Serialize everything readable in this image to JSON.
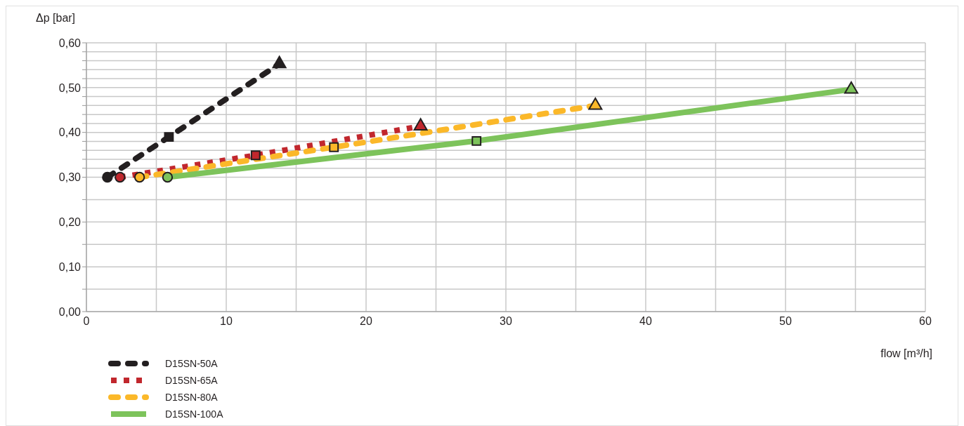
{
  "chart_data": {
    "type": "line",
    "xlabel": "flow [m³/h]",
    "ylabel": "Δp [bar]",
    "xlim": [
      0,
      60
    ],
    "xticks": [
      0,
      {
        "value": 5,
        "label": null
      },
      10,
      {
        "value": 15,
        "label": null
      },
      20,
      {
        "value": 25,
        "label": null
      },
      30,
      {
        "value": 35,
        "label": null
      },
      40,
      {
        "value": 45,
        "label": null
      },
      50,
      {
        "value": 55,
        "label": null
      },
      60
    ],
    "ylim": [
      0,
      0.6
    ],
    "yticks": [
      {
        "value": 0,
        "label": "0,00"
      },
      {
        "value": 0.05,
        "label": null
      },
      {
        "value": 0.1,
        "label": "0,10"
      },
      {
        "value": 0.15,
        "label": null
      },
      {
        "value": 0.2,
        "label": "0,20"
      },
      {
        "value": 0.25,
        "label": null
      },
      {
        "value": 0.3,
        "label": "0,30"
      },
      {
        "value": 0.32,
        "label": null
      },
      {
        "value": 0.34,
        "label": null
      },
      {
        "value": 0.36,
        "label": null
      },
      {
        "value": 0.38,
        "label": null
      },
      {
        "value": 0.4,
        "label": "0,40"
      },
      {
        "value": 0.42,
        "label": null
      },
      {
        "value": 0.44,
        "label": null
      },
      {
        "value": 0.46,
        "label": null
      },
      {
        "value": 0.48,
        "label": null
      },
      {
        "value": 0.5,
        "label": "0,50"
      },
      {
        "value": 0.52,
        "label": null
      },
      {
        "value": 0.54,
        "label": null
      },
      {
        "value": 0.56,
        "label": null
      },
      {
        "value": 0.58,
        "label": null
      },
      {
        "value": 0.6,
        "label": "0,60"
      }
    ],
    "grid": true,
    "legend": "bottom left",
    "series": [
      {
        "name": "D15SN-50A",
        "color": "#231f20",
        "line_style": "dashed",
        "marker": "none",
        "x": [
          1.5,
          5.9,
          13.8
        ],
        "values": [
          0.3,
          0.39,
          0.553
        ]
      },
      {
        "name": "D15SN-65A",
        "color": "#c1272d",
        "line_style": "dotted",
        "marker": "none",
        "x": [
          2.4,
          12.1,
          23.9
        ],
        "values": [
          0.3,
          0.349,
          0.414
        ]
      },
      {
        "name": "D15SN-80A",
        "color": "#fbb829",
        "line_style": "dashed",
        "marker": "none",
        "x": [
          3.8,
          17.7,
          36.4
        ],
        "values": [
          0.3,
          0.367,
          0.46
        ]
      },
      {
        "name": "D15SN-100A",
        "color": "#7dc35b",
        "line_style": "solid",
        "marker": "none",
        "x": [
          5.8,
          27.9,
          54.7
        ],
        "values": [
          0.3,
          0.381,
          0.496
        ]
      },
      {
        "type": "scatter",
        "marker": "circle",
        "x": [
          1.5,
          2.4,
          3.8,
          5.8
        ],
        "values": [
          0.3,
          0.3,
          0.3,
          0.3
        ],
        "colors": [
          "#231f20",
          "#c1272d",
          "#fbb829",
          "#7dc35b"
        ]
      },
      {
        "type": "scatter",
        "marker": "square",
        "x": [
          5.9,
          12.1,
          17.7,
          27.9
        ],
        "values": [
          0.39,
          0.349,
          0.367,
          0.381
        ],
        "colors": [
          "#231f20",
          "#c1272d",
          "#fbb829",
          "#7dc35b"
        ]
      },
      {
        "type": "scatter",
        "marker": "triangle",
        "x": [
          13.8,
          23.9,
          36.4,
          54.7
        ],
        "values": [
          0.553,
          0.414,
          0.46,
          0.496
        ],
        "colors": [
          "#231f20",
          "#c1272d",
          "#fbb829",
          "#7dc35b"
        ]
      }
    ]
  }
}
